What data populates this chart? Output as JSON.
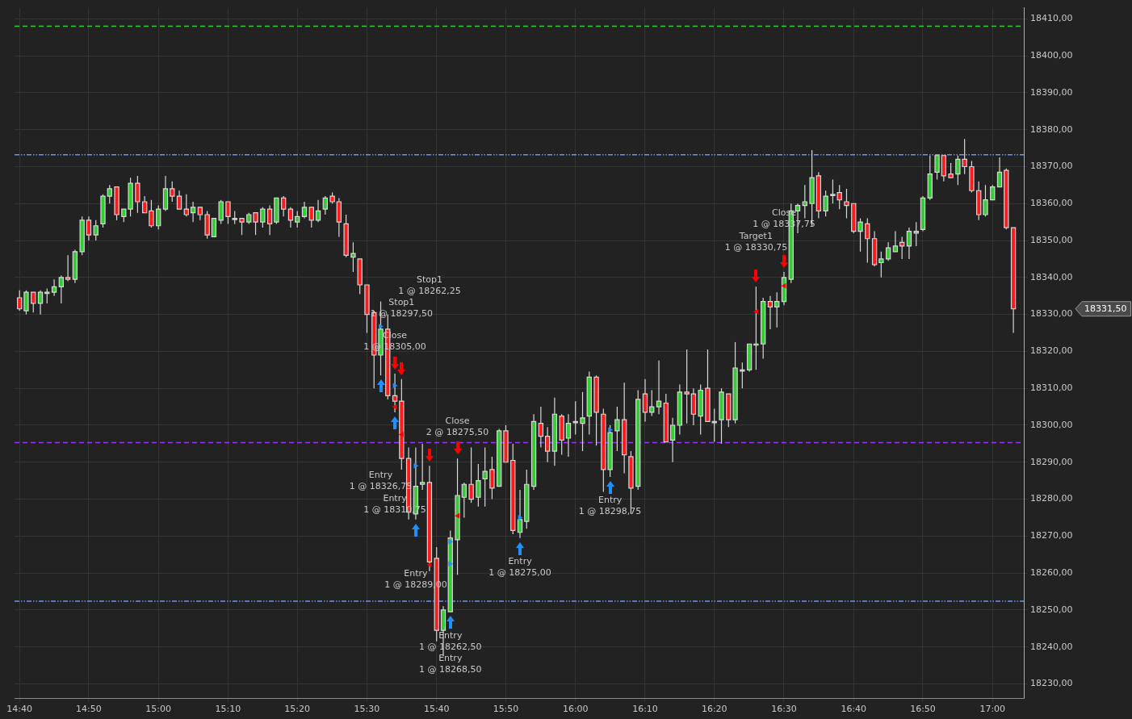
{
  "chart_data": {
    "type": "candlestick",
    "x": [
      14.667,
      14.683,
      14.7,
      14.717,
      14.733,
      14.75,
      14.767,
      14.783,
      14.8,
      14.817,
      14.833,
      14.85,
      14.867,
      14.883,
      14.9,
      14.917,
      14.933,
      14.95,
      14.967,
      14.983,
      15,
      15.017,
      15.033,
      15.05,
      15.067,
      15.083,
      15.1,
      15.117,
      15.133,
      15.15,
      15.167,
      15.183,
      15.2,
      15.217,
      15.233,
      15.25,
      15.267,
      15.283,
      15.3,
      15.317,
      15.333,
      15.35,
      15.367,
      15.383,
      15.4,
      15.417,
      15.433,
      15.45,
      15.467,
      15.483,
      15.5,
      15.517,
      15.533,
      15.55,
      15.567,
      15.583,
      15.6,
      15.617,
      15.633,
      15.65,
      15.667,
      15.683,
      15.7,
      15.717,
      15.733,
      15.75,
      15.767,
      15.783,
      15.8,
      15.817,
      15.833,
      15.85,
      15.867,
      15.883,
      15.9,
      15.917,
      15.933,
      15.95,
      15.967,
      15.983,
      16,
      16.017,
      16.033,
      16.05,
      16.067,
      16.083,
      16.1,
      16.117,
      16.133,
      16.15,
      16.167,
      16.183,
      16.2,
      16.217,
      16.233,
      16.25,
      16.267,
      16.283,
      16.3,
      16.317,
      16.333,
      16.35,
      16.367,
      16.383,
      16.4,
      16.417,
      16.433,
      16.45,
      16.467,
      16.483,
      16.5,
      16.517,
      16.533,
      16.55,
      16.567,
      16.583,
      16.6,
      16.617,
      16.633,
      16.65,
      16.667,
      16.683,
      16.7,
      16.717,
      16.733,
      16.75,
      16.767,
      16.783,
      16.8,
      16.817,
      16.833,
      16.85,
      16.867,
      16.883,
      16.9,
      16.917,
      16.933,
      16.95,
      16.967,
      16.983,
      17,
      17.017,
      17.033,
      17.05
    ],
    "ohlc": [
      [
        18334.5,
        18336.5,
        18331,
        18331.5
      ],
      [
        18331,
        18336.5,
        18330,
        18336
      ],
      [
        18336,
        18336,
        18330.5,
        18333
      ],
      [
        18333,
        18336.5,
        18330,
        18336
      ],
      [
        18336,
        18337,
        18333,
        18336
      ],
      [
        18336,
        18339.5,
        18335,
        18337.5
      ],
      [
        18337.5,
        18340.5,
        18333,
        18340
      ],
      [
        18340,
        18346,
        18339,
        18339.5
      ],
      [
        18339.5,
        18347.5,
        18338.5,
        18347
      ],
      [
        18347,
        18356.5,
        18346,
        18355.5
      ],
      [
        18355.5,
        18356.5,
        18350,
        18351.5
      ],
      [
        18351.5,
        18355.5,
        18350,
        18354
      ],
      [
        18354.5,
        18362.5,
        18353.5,
        18362
      ],
      [
        18362,
        18365,
        18360,
        18364
      ],
      [
        18364.5,
        18364.5,
        18355.5,
        18357
      ],
      [
        18356.5,
        18358.5,
        18355,
        18358.5
      ],
      [
        18358.5,
        18367,
        18356.5,
        18365.5
      ],
      [
        18365.5,
        18367.5,
        18357.5,
        18360.5
      ],
      [
        18360.5,
        18362,
        18357.5,
        18357.5
      ],
      [
        18358,
        18361,
        18353.5,
        18354
      ],
      [
        18354,
        18359.5,
        18353,
        18358.5
      ],
      [
        18358.5,
        18367.5,
        18358,
        18364
      ],
      [
        18364,
        18366,
        18360.5,
        18362
      ],
      [
        18362,
        18363.5,
        18358.5,
        18358.5
      ],
      [
        18358.5,
        18362.5,
        18356.5,
        18357
      ],
      [
        18357.5,
        18360.5,
        18355,
        18359
      ],
      [
        18359,
        18359,
        18355.5,
        18357
      ],
      [
        18357,
        18358,
        18350.5,
        18351.5
      ],
      [
        18351,
        18356,
        18351,
        18356
      ],
      [
        18355.5,
        18361,
        18354.5,
        18360.5
      ],
      [
        18360.5,
        18360.5,
        18354.5,
        18356.5
      ],
      [
        18356,
        18358,
        18354.5,
        18356
      ],
      [
        18356,
        18356,
        18351.5,
        18355
      ],
      [
        18355,
        18357.5,
        18354.5,
        18357
      ],
      [
        18357.5,
        18357.5,
        18351.5,
        18355
      ],
      [
        18355,
        18359,
        18353.5,
        18358.5
      ],
      [
        18358.5,
        18359.5,
        18351.5,
        18354.5
      ],
      [
        18355,
        18361.5,
        18354.5,
        18361.5
      ],
      [
        18361.5,
        18362,
        18356.5,
        18358.5
      ],
      [
        18358.5,
        18359,
        18353.5,
        18355.5
      ],
      [
        18355,
        18358,
        18353.5,
        18356.5
      ],
      [
        18356.5,
        18360.5,
        18356,
        18359
      ],
      [
        18359,
        18359,
        18353.5,
        18355.5
      ],
      [
        18355.5,
        18361,
        18355,
        18358
      ],
      [
        18358.5,
        18362,
        18357,
        18361.5
      ],
      [
        18362,
        18363,
        18360,
        18360.5
      ],
      [
        18360.5,
        18361.5,
        18351,
        18355
      ],
      [
        18354.5,
        18357,
        18345.5,
        18346
      ],
      [
        18345.5,
        18349.5,
        18341.5,
        18346.5
      ],
      [
        18345,
        18345,
        18335.5,
        18338
      ],
      [
        18338,
        18338,
        18325,
        18330
      ],
      [
        18330.5,
        18331,
        18310,
        18319
      ],
      [
        18319,
        18333.5,
        18313.5,
        18326
      ],
      [
        18326,
        18330,
        18307,
        18308
      ],
      [
        18308,
        18314,
        18303.5,
        18306.5
      ],
      [
        18306.5,
        18312.5,
        18288,
        18291
      ],
      [
        18291,
        18294,
        18274.5,
        18276.5
      ],
      [
        18276,
        18294,
        18274.5,
        18283.5
      ],
      [
        18284,
        18295,
        18282.5,
        18284.5
      ],
      [
        18284.5,
        18289,
        18260.5,
        18263
      ],
      [
        18264,
        18267,
        18241.5,
        18244.5
      ],
      [
        18244.5,
        18251,
        18237.5,
        18250
      ],
      [
        18249.5,
        18271.5,
        18249.5,
        18269.5
      ],
      [
        18269,
        18291,
        18259.5,
        18281
      ],
      [
        18280.5,
        18284.5,
        18275,
        18284
      ],
      [
        18284,
        18294,
        18279,
        18280
      ],
      [
        18280.5,
        18289.5,
        18278,
        18285
      ],
      [
        18285.5,
        18294,
        18278,
        18287.5
      ],
      [
        18288,
        18291.5,
        18280,
        18283
      ],
      [
        18283.5,
        18299,
        18283.5,
        18298.5
      ],
      [
        18298.5,
        18300,
        18290,
        18290
      ],
      [
        18290.5,
        18295,
        18270.5,
        18271.5
      ],
      [
        18271,
        18282.5,
        18269.5,
        18274.5
      ],
      [
        18274,
        18288,
        18272,
        18284
      ],
      [
        18283.5,
        18303,
        18282.5,
        18301
      ],
      [
        18300.5,
        18305,
        18294,
        18297
      ],
      [
        18297,
        18299.5,
        18290,
        18293
      ],
      [
        18293,
        18307.5,
        18289,
        18303
      ],
      [
        18302.5,
        18303,
        18292,
        18296
      ],
      [
        18296.5,
        18303,
        18291.5,
        18300.5
      ],
      [
        18301,
        18306.5,
        18297.5,
        18301
      ],
      [
        18300.5,
        18309,
        18293,
        18302
      ],
      [
        18302.5,
        18314.5,
        18297.5,
        18313
      ],
      [
        18313,
        18313.5,
        18294.5,
        18303.5
      ],
      [
        18303,
        18304.5,
        18282,
        18288
      ],
      [
        18288,
        18300,
        18286,
        18298
      ],
      [
        18298.5,
        18305,
        18293,
        18301.5
      ],
      [
        18301.5,
        18311.5,
        18287,
        18292
      ],
      [
        18291.5,
        18293,
        18276,
        18283
      ],
      [
        18283.5,
        18309.5,
        18282.5,
        18307
      ],
      [
        18308.5,
        18312.5,
        18301,
        18303.5
      ],
      [
        18303.5,
        18309.5,
        18302.5,
        18305
      ],
      [
        18305,
        18317.5,
        18303,
        18306.5
      ],
      [
        18306,
        18308.5,
        18295.5,
        18295.5
      ],
      [
        18296,
        18302,
        18290,
        18300
      ],
      [
        18300,
        18311,
        18297.5,
        18309
      ],
      [
        18309,
        18320.5,
        18300.5,
        18308.5
      ],
      [
        18308.5,
        18310,
        18300,
        18303
      ],
      [
        18302.5,
        18311,
        18297.5,
        18309.5
      ],
      [
        18310,
        18320.5,
        18301,
        18301
      ],
      [
        18301,
        18304.5,
        18295.5,
        18301
      ],
      [
        18301.5,
        18310,
        18295,
        18309
      ],
      [
        18308.5,
        18308.5,
        18299.5,
        18301.5
      ],
      [
        18301.5,
        18322.5,
        18300.5,
        18315.5
      ],
      [
        18315,
        18317,
        18310,
        18315
      ],
      [
        18315,
        18322,
        18314.5,
        18322
      ],
      [
        18322,
        18337.5,
        18315,
        18322
      ],
      [
        18322,
        18334.5,
        18318,
        18333.5
      ],
      [
        18333.5,
        18335,
        18326,
        18332
      ],
      [
        18332,
        18336,
        18326.5,
        18333.5
      ],
      [
        18333.5,
        18341.5,
        18332.5,
        18340
      ],
      [
        18339.5,
        18360,
        18338.5,
        18358
      ],
      [
        18358,
        18360,
        18352,
        18359.5
      ],
      [
        18359.5,
        18365,
        18356,
        18360.5
      ],
      [
        18360,
        18374.5,
        18354,
        18367
      ],
      [
        18367.5,
        18368.5,
        18356,
        18358
      ],
      [
        18358,
        18363.5,
        18356.5,
        18362
      ],
      [
        18362.5,
        18366.5,
        18360,
        18362.5
      ],
      [
        18363,
        18365,
        18358.5,
        18361
      ],
      [
        18360.5,
        18364,
        18356,
        18359.5
      ],
      [
        18360,
        18360,
        18352,
        18352.5
      ],
      [
        18352.5,
        18356,
        18347,
        18355
      ],
      [
        18354.5,
        18356,
        18344,
        18350.5
      ],
      [
        18350.5,
        18352.5,
        18343,
        18343.5
      ],
      [
        18344,
        18347,
        18340,
        18345
      ],
      [
        18345,
        18349.5,
        18344.5,
        18348
      ],
      [
        18347,
        18352.5,
        18347,
        18348.5
      ],
      [
        18349.5,
        18351,
        18345,
        18348.5
      ],
      [
        18348.5,
        18353.5,
        18345,
        18352.5
      ],
      [
        18352,
        18355,
        18348.5,
        18352.5
      ],
      [
        18353,
        18362,
        18352.5,
        18361.5
      ],
      [
        18361.5,
        18373,
        18361,
        18368
      ],
      [
        18368.5,
        18373,
        18366.5,
        18373
      ],
      [
        18373,
        18373,
        18366,
        18367.5
      ],
      [
        18368,
        18371,
        18367,
        18367
      ],
      [
        18368,
        18373,
        18365,
        18372
      ],
      [
        18372,
        18377.5,
        18368,
        18370
      ],
      [
        18370,
        18371.5,
        18363,
        18363.5
      ],
      [
        18363.5,
        18366,
        18355.5,
        18357
      ],
      [
        18357,
        18365,
        18356.5,
        18361
      ],
      [
        18361,
        18365,
        18361,
        18364.5
      ],
      [
        18364.5,
        18372.5,
        18364.5,
        18368.5
      ],
      [
        18369,
        18369.5,
        18353,
        18353.5
      ],
      [
        18353.5,
        18353.5,
        18325,
        18331.5
      ]
    ],
    "series": [
      {
        "type": "scatter",
        "color": "#1e90ff",
        "x": [
          15.533,
          15.567,
          15.617,
          15.7,
          15.7,
          15.867,
          16.083
        ],
        "values": [
          18326.75,
          18310.75,
          18289,
          18262.5,
          18268.5,
          18275,
          18298.75
        ]
      },
      {
        "type": "scatter",
        "color": "#ff0000",
        "x": [
          15.567,
          15.583,
          15.65,
          15.717,
          16.433,
          16.5
        ],
        "values": [
          18305,
          18297.5,
          18262.25,
          18275.5,
          18330.75,
          18337.75
        ]
      }
    ],
    "marker": "triangle",
    "xlim": [
      14.655,
      17.075
    ],
    "xticks": [
      {
        "value": 14.667,
        "label": "14:40"
      },
      {
        "value": 14.833,
        "label": "14:50"
      },
      {
        "value": 15,
        "label": "15:00"
      },
      {
        "value": 15.167,
        "label": "15:10"
      },
      {
        "value": 15.333,
        "label": "15:20"
      },
      {
        "value": 15.5,
        "label": "15:30"
      },
      {
        "value": 15.667,
        "label": "15:40"
      },
      {
        "value": 15.833,
        "label": "15:50"
      },
      {
        "value": 16,
        "label": "16:00"
      },
      {
        "value": 16.167,
        "label": "16:10"
      },
      {
        "value": 16.333,
        "label": "16:20"
      },
      {
        "value": 16.5,
        "label": "16:30"
      },
      {
        "value": 16.667,
        "label": "16:40"
      },
      {
        "value": 16.833,
        "label": "16:50"
      },
      {
        "value": 17,
        "label": "17:00"
      }
    ],
    "ylim": [
      18226,
      18413
    ],
    "yticks": [
      {
        "value": 18230,
        "label": "18230,00"
      },
      {
        "value": 18240,
        "label": "18240,00"
      },
      {
        "value": 18250,
        "label": "18250,00"
      },
      {
        "value": 18260,
        "label": "18260,00"
      },
      {
        "value": 18270,
        "label": "18270,00"
      },
      {
        "value": 18280,
        "label": "18280,00"
      },
      {
        "value": 18290,
        "label": "18290,00"
      },
      {
        "value": 18300,
        "label": "18300,00"
      },
      {
        "value": 18310,
        "label": "18310,00"
      },
      {
        "value": 18320,
        "label": "18320,00"
      },
      {
        "value": 18330,
        "label": "18330,00"
      },
      {
        "value": 18340,
        "label": "18340,00"
      },
      {
        "value": 18350,
        "label": "18350,00"
      },
      {
        "value": 18360,
        "label": "18360,00"
      },
      {
        "value": 18370,
        "label": "18370,00"
      },
      {
        "value": 18380,
        "label": "18380,00"
      },
      {
        "value": 18390,
        "label": "18390,00"
      },
      {
        "value": 18400,
        "label": "18400,00"
      },
      {
        "value": 18410,
        "label": "18410,00"
      }
    ],
    "ref_lines": [
      {
        "axis": "y",
        "value": 18408,
        "color": "#33cc33",
        "line_style": "dashed"
      },
      {
        "axis": "y",
        "value": 18373.2,
        "color": "#6495ed",
        "line_style": "dotted"
      },
      {
        "axis": "y",
        "value": 18295.3,
        "color": "#9b30ff",
        "line_style": "dashed"
      },
      {
        "axis": "y",
        "value": 18252.4,
        "color": "#6495ed",
        "line_style": "dotted"
      }
    ],
    "annotations": [
      "Entry\n1 @ 18326,75",
      "Entry\n1 @ 18310,75",
      "Entry\n1 @ 18289,00",
      "Entry\n1 @ 18262,50",
      "Entry\n1 @ 18268,50",
      "Entry\n1 @ 18275,00",
      "Entry\n1 @ 18298,75",
      "Close\n1 @ 18305,00",
      "Stop1\n1 @ 18297,50",
      "Stop1\n1 @ 18262,25",
      "Close\n2 @ 18275,50",
      "Target1\n1 @ 18330,75",
      "Close\n1 @ 18337,75",
      "18331,50"
    ],
    "grid": true,
    "legend": false
  }
}
